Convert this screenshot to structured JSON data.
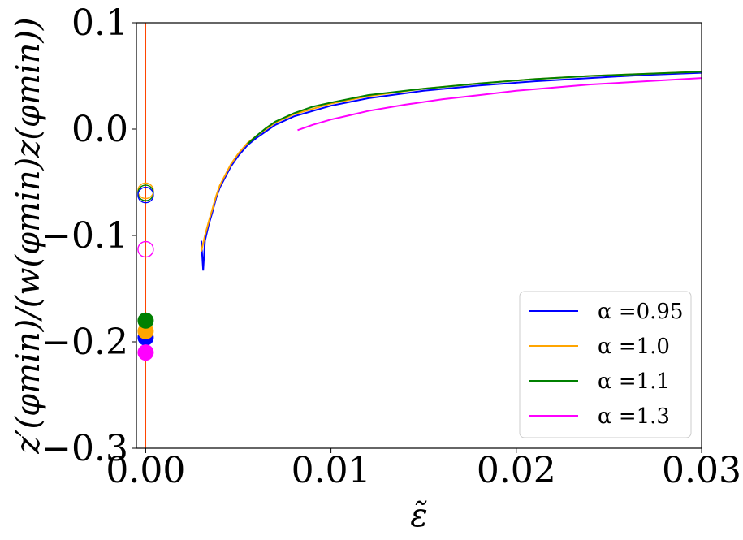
{
  "chart_data": {
    "type": "line",
    "xlabel": "ε̃",
    "ylabel": "z′(φmin)/(w(φmin)z(φmin))",
    "xlim": [
      -0.0005,
      0.03
    ],
    "ylim": [
      -0.3,
      0.1
    ],
    "xticks": [
      0.0,
      0.01,
      0.02,
      0.03
    ],
    "xtick_labels": [
      "0.00",
      "0.01",
      "0.02",
      "0.03"
    ],
    "yticks": [
      -0.3,
      -0.2,
      -0.1,
      0.0,
      0.1
    ],
    "ytick_labels": [
      "−0.3",
      "−0.2",
      "−0.1",
      "0.0",
      "0.1"
    ],
    "grid": false,
    "legend_position": "bottom-right",
    "vertical_line": {
      "x": 0.0,
      "color": "#ff4500"
    },
    "series": [
      {
        "name": "α =0.95",
        "color": "#0000ff",
        "x": [
          0.003,
          0.0031,
          0.0032,
          0.0034,
          0.0036,
          0.0038,
          0.004,
          0.0043,
          0.0046,
          0.005,
          0.0055,
          0.006,
          0.007,
          0.008,
          0.01,
          0.012,
          0.015,
          0.018,
          0.021,
          0.024,
          0.027,
          0.03
        ],
        "y": [
          -0.105,
          -0.133,
          -0.105,
          -0.09,
          -0.078,
          -0.065,
          -0.055,
          -0.045,
          -0.035,
          -0.025,
          -0.015,
          -0.008,
          0.004,
          0.012,
          0.022,
          0.029,
          0.036,
          0.041,
          0.045,
          0.048,
          0.051,
          0.053
        ]
      },
      {
        "name": "α =1.0",
        "color": "#ffa500",
        "x": [
          0.003,
          0.0032,
          0.0034,
          0.0036,
          0.0038,
          0.004,
          0.0043,
          0.0046,
          0.005,
          0.0055,
          0.006,
          0.007,
          0.008,
          0.01,
          0.012,
          0.015,
          0.018,
          0.021,
          0.024,
          0.027,
          0.03
        ],
        "y": [
          -0.115,
          -0.1,
          -0.087,
          -0.075,
          -0.063,
          -0.053,
          -0.043,
          -0.033,
          -0.023,
          -0.013,
          -0.006,
          0.006,
          0.014,
          0.024,
          0.031,
          0.038,
          0.043,
          0.047,
          0.05,
          0.052,
          0.054
        ]
      },
      {
        "name": "α =1.1",
        "color": "#008000",
        "x": [
          0.0055,
          0.006,
          0.0065,
          0.007,
          0.008,
          0.009,
          0.01,
          0.012,
          0.015,
          0.018,
          0.021,
          0.024,
          0.027,
          0.03
        ],
        "y": [
          -0.014,
          -0.006,
          0.001,
          0.007,
          0.015,
          0.021,
          0.025,
          0.032,
          0.038,
          0.043,
          0.047,
          0.05,
          0.052,
          0.054
        ]
      },
      {
        "name": "α =1.3",
        "color": "#ff00ff",
        "x": [
          0.0082,
          0.009,
          0.01,
          0.011,
          0.012,
          0.014,
          0.016,
          0.018,
          0.02,
          0.022,
          0.024,
          0.026,
          0.028,
          0.03
        ],
        "y": [
          -0.001,
          0.004,
          0.009,
          0.013,
          0.017,
          0.023,
          0.028,
          0.032,
          0.036,
          0.039,
          0.042,
          0.044,
          0.046,
          0.048
        ]
      }
    ],
    "markers_open": [
      {
        "x": 0.0,
        "y": -0.058,
        "color": "#ffa500"
      },
      {
        "x": 0.0,
        "y": -0.06,
        "color": "#008000"
      },
      {
        "x": 0.0,
        "y": -0.062,
        "color": "#0000ff"
      },
      {
        "x": 0.0,
        "y": -0.113,
        "color": "#ff00ff"
      }
    ],
    "markers_filled": [
      {
        "x": 0.0,
        "y": -0.196,
        "color": "#0000ff"
      },
      {
        "x": 0.0,
        "y": -0.19,
        "color": "#ffa500"
      },
      {
        "x": 0.0,
        "y": -0.18,
        "color": "#008000"
      },
      {
        "x": 0.0,
        "y": -0.21,
        "color": "#ff00ff"
      }
    ]
  }
}
